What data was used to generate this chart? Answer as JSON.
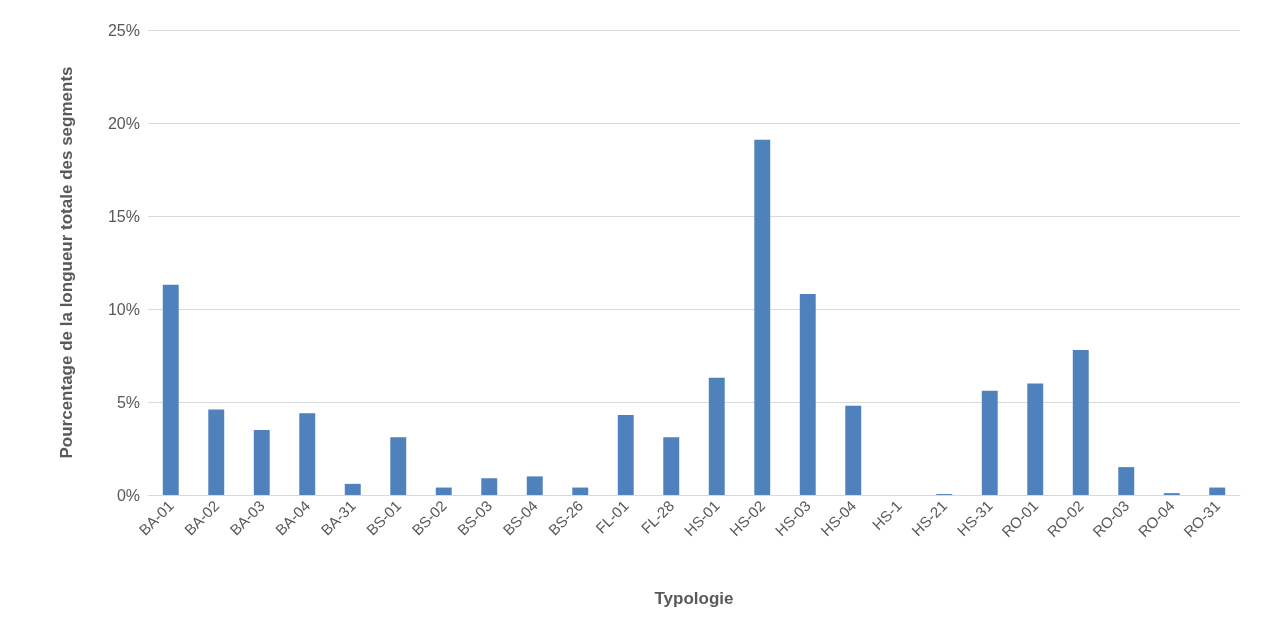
{
  "chart_data": {
    "type": "bar",
    "xlabel": "Typologie",
    "ylabel": "Pourcentage de la longueur totale des segments",
    "categories": [
      "BA-01",
      "BA-02",
      "BA-03",
      "BA-04",
      "BA-31",
      "BS-01",
      "BS-02",
      "BS-03",
      "BS-04",
      "BS-26",
      "FL-01",
      "FL-28",
      "HS-01",
      "HS-02",
      "HS-03",
      "HS-04",
      "HS-1",
      "HS-21",
      "HS-31",
      "RO-01",
      "RO-02",
      "RO-03",
      "RO-04",
      "RO-31"
    ],
    "values": [
      11.3,
      4.6,
      3.5,
      4.4,
      0.6,
      3.1,
      0.4,
      0.9,
      1.0,
      0.4,
      4.3,
      3.1,
      6.3,
      19.1,
      10.8,
      4.8,
      0,
      0.05,
      5.6,
      6.0,
      7.8,
      1.5,
      0.1,
      0.4
    ],
    "color": "#4f81bd",
    "ylim": [
      0,
      25
    ],
    "yticks": [
      {
        "value": 0,
        "label": "0%"
      },
      {
        "value": 5,
        "label": "5%"
      },
      {
        "value": 10,
        "label": "10%"
      },
      {
        "value": 15,
        "label": "15%"
      },
      {
        "value": 20,
        "label": "20%"
      },
      {
        "value": 25,
        "label": "25%"
      }
    ],
    "grid": "y"
  }
}
